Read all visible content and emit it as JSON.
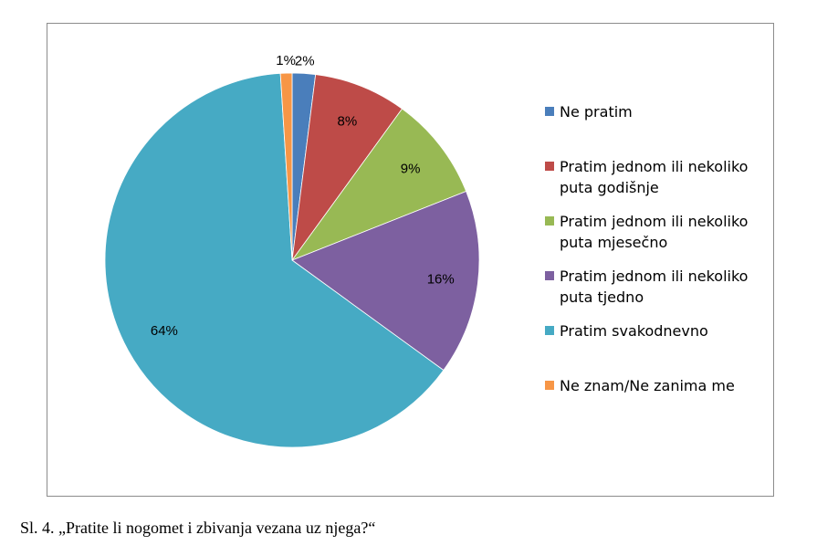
{
  "chart_data": {
    "type": "pie",
    "title": "",
    "categories": [
      "Ne pratim",
      "Pratim jednom ili nekoliko puta godišnje",
      "Pratim jednom ili nekoliko puta mjesečno",
      "Pratim jednom ili nekoliko puta tjedno",
      "Pratim svakodnevno",
      "Ne znam/Ne zanima me"
    ],
    "values": [
      2,
      8,
      9,
      16,
      64,
      1
    ],
    "labels": [
      "2%",
      "8%",
      "9%",
      "16%",
      "64%",
      "1%"
    ],
    "colors": [
      "#4a7ebb",
      "#be4b48",
      "#98b954",
      "#7d60a0",
      "#46aac4",
      "#f79646"
    ],
    "legend_position": "right",
    "legend": [
      {
        "line1": "Ne pratim",
        "line2": ""
      },
      {
        "line1": "Pratim jednom ili nekoliko",
        "line2": "puta godišnje"
      },
      {
        "line1": "Pratim jednom ili nekoliko",
        "line2": "puta mjesečno"
      },
      {
        "line1": "Pratim jednom ili nekoliko",
        "line2": "puta tjedno"
      },
      {
        "line1": "Pratim svakodnevno",
        "line2": ""
      },
      {
        "line1": "Ne znam/Ne zanima me",
        "line2": ""
      }
    ]
  },
  "caption": "Sl. 4. „Pratite li nogomet i zbivanja vezana uz njega?“"
}
